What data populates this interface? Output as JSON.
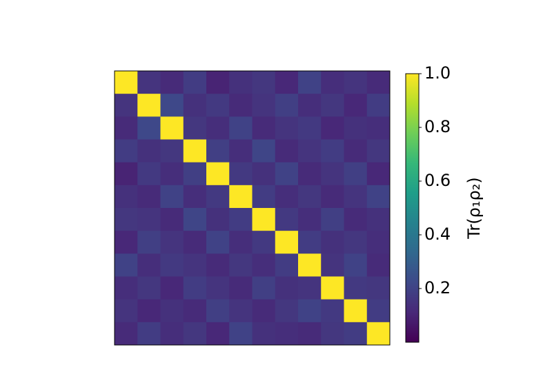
{
  "chart_data": {
    "type": "heatmap",
    "colormap": "viridis",
    "colorbar_label": "Tr(ρ₁ρ₂)",
    "clim": [
      0,
      1
    ],
    "colorbar_ticks": [
      0.2,
      0.4,
      0.6,
      0.8,
      {
        "value": 1,
        "label": "1.0"
      }
    ],
    "values": [
      [
        1.0,
        0.15,
        0.12,
        0.18,
        0.1,
        0.14,
        0.16,
        0.11,
        0.2,
        0.13,
        0.15,
        0.12
      ],
      [
        0.15,
        1.0,
        0.22,
        0.14,
        0.17,
        0.12,
        0.15,
        0.19,
        0.13,
        0.16,
        0.11,
        0.18
      ],
      [
        0.12,
        0.22,
        1.0,
        0.16,
        0.13,
        0.2,
        0.12,
        0.15,
        0.17,
        0.11,
        0.14,
        0.13
      ],
      [
        0.18,
        0.14,
        0.16,
        1.0,
        0.19,
        0.13,
        0.21,
        0.12,
        0.15,
        0.18,
        0.12,
        0.16
      ],
      [
        0.1,
        0.17,
        0.13,
        0.19,
        1.0,
        0.17,
        0.14,
        0.2,
        0.12,
        0.15,
        0.19,
        0.11
      ],
      [
        0.14,
        0.12,
        0.2,
        0.13,
        0.17,
        1.0,
        0.18,
        0.13,
        0.16,
        0.12,
        0.15,
        0.2
      ],
      [
        0.16,
        0.15,
        0.12,
        0.21,
        0.14,
        0.18,
        1.0,
        0.17,
        0.13,
        0.19,
        0.12,
        0.14
      ],
      [
        0.11,
        0.19,
        0.15,
        0.12,
        0.2,
        0.13,
        0.17,
        1.0,
        0.18,
        0.14,
        0.16,
        0.13
      ],
      [
        0.2,
        0.13,
        0.17,
        0.15,
        0.12,
        0.16,
        0.13,
        0.18,
        1.0,
        0.15,
        0.2,
        0.12
      ],
      [
        0.13,
        0.16,
        0.11,
        0.18,
        0.15,
        0.12,
        0.19,
        0.14,
        0.15,
        1.0,
        0.17,
        0.16
      ],
      [
        0.15,
        0.11,
        0.14,
        0.12,
        0.19,
        0.15,
        0.12,
        0.16,
        0.2,
        0.17,
        1.0,
        0.18
      ],
      [
        0.12,
        0.18,
        0.13,
        0.16,
        0.11,
        0.2,
        0.14,
        0.13,
        0.12,
        0.16,
        0.18,
        1.0
      ]
    ]
  }
}
